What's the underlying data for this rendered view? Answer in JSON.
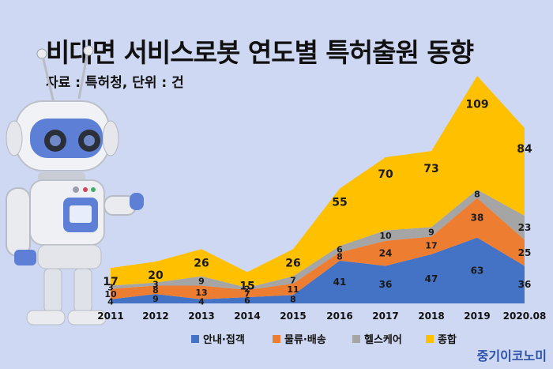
{
  "header": {
    "title": "비대면 서비스로봇 연도별 특허출원 동향",
    "source": "자료 : 특허청, 단위 : 건"
  },
  "brand": "중기이코노미",
  "colors": {
    "background": "#cfd8f2",
    "guide": "#4472c4",
    "logistics": "#ed7d31",
    "health": "#a5a5a5",
    "general": "#ffc000"
  },
  "chart_data": {
    "type": "area",
    "stacked": true,
    "categories": [
      "2011",
      "2012",
      "2013",
      "2014",
      "2015",
      "2016",
      "2017",
      "2018",
      "2019",
      "2020.08"
    ],
    "series": [
      {
        "name": "안내·접객",
        "color": "#4472c4",
        "values": [
          4,
          9,
          4,
          6,
          8,
          41,
          36,
          47,
          63,
          36
        ]
      },
      {
        "name": "물류·배송",
        "color": "#ed7d31",
        "values": [
          10,
          8,
          13,
          7,
          11,
          8,
          24,
          17,
          38,
          25
        ]
      },
      {
        "name": "헬스케어",
        "color": "#a5a5a5",
        "values": [
          3,
          3,
          9,
          2,
          7,
          6,
          10,
          9,
          8,
          23
        ]
      },
      {
        "name": "종합",
        "color": "#ffc000",
        "values": [
          17,
          20,
          26,
          15,
          26,
          55,
          70,
          73,
          109,
          84
        ]
      }
    ],
    "legend_position": "bottom",
    "grid": false
  }
}
